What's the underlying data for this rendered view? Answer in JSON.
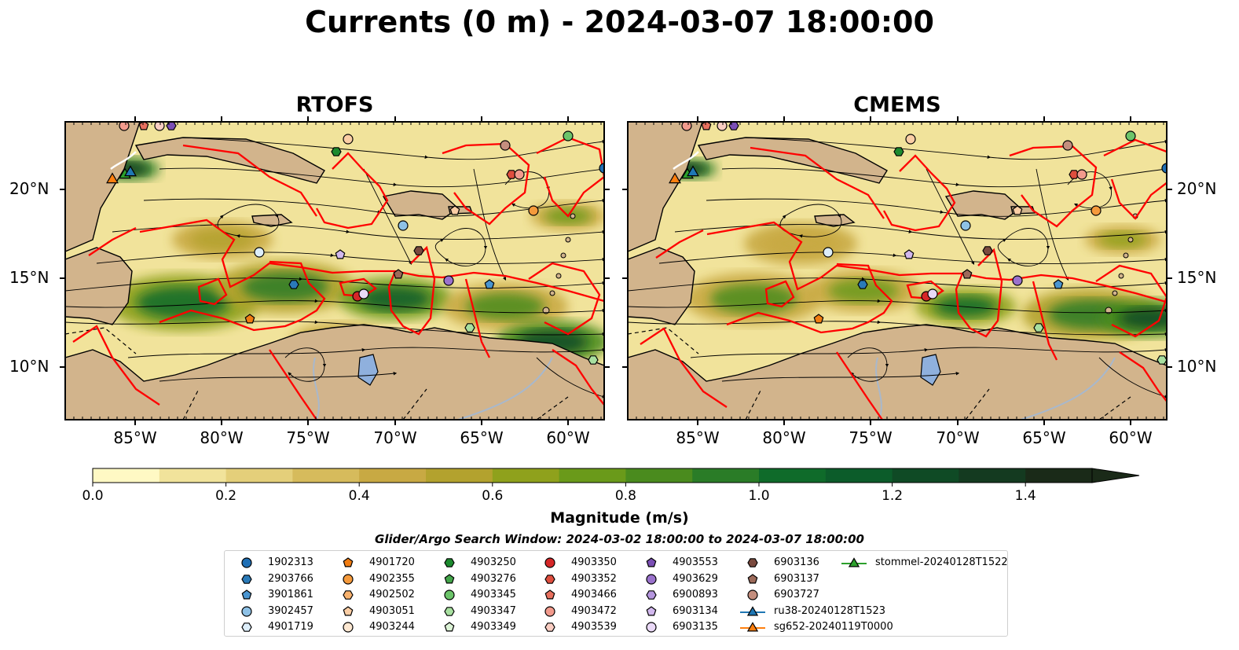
{
  "title": "Currents (0 m) - 2024-03-07 18:00:00",
  "panels": [
    {
      "name": "RTOFS"
    },
    {
      "name": "CMEMS"
    }
  ],
  "axes": {
    "lon_ticks": [
      "85°W",
      "80°W",
      "75°W",
      "70°W",
      "65°W",
      "60°W"
    ],
    "lat_ticks": [
      "20°N",
      "15°N",
      "10°N"
    ]
  },
  "colorbar": {
    "label": "Magnitude (m/s)",
    "range": [
      0,
      1.5
    ],
    "extend": "max",
    "ticks": [
      "0.0",
      "0.2",
      "0.4",
      "0.6",
      "0.8",
      "1.0",
      "1.2",
      "1.4"
    ],
    "colors": [
      "#fff9c4",
      "#f1e39b",
      "#e4cf7a",
      "#d6bb5c",
      "#c8a943",
      "#b3a22e",
      "#8fa11c",
      "#6a9a1a",
      "#4a8b1e",
      "#2a7c27",
      "#0f6b2a",
      "#0c5c2a",
      "#0f4a25",
      "#143a20",
      "#1a2a18"
    ]
  },
  "map_colors": {
    "land": "#d2b48c",
    "lake": "#8fb0dd",
    "river": "#a8b8cc",
    "search_boxes": "#ff0000",
    "streamlines": "#000000",
    "glider_track": "#ffffff"
  },
  "search_window": "Glider/Argo Search Window: 2024-03-02 18:00:00 to 2024-03-07 18:00:00",
  "legend": [
    {
      "label": "1902313",
      "marker": "circle",
      "color": "#1f6fb5"
    },
    {
      "label": "2903766",
      "marker": "hexagon",
      "color": "#2a7ab8"
    },
    {
      "label": "3901861",
      "marker": "pentagon",
      "color": "#4a95d0"
    },
    {
      "label": "3902457",
      "marker": "circle",
      "color": "#8ec1e6"
    },
    {
      "label": "4901719",
      "marker": "hexagon",
      "color": "#ddeefa"
    },
    {
      "label": "4901720",
      "marker": "pentagon",
      "color": "#f07c12"
    },
    {
      "label": "4902355",
      "marker": "circle",
      "color": "#f59a3c"
    },
    {
      "label": "4902502",
      "marker": "hexagon",
      "color": "#f8b26e"
    },
    {
      "label": "4903051",
      "marker": "pentagon",
      "color": "#fbcea5"
    },
    {
      "label": "4903244",
      "marker": "circle",
      "color": "#fde8d2"
    },
    {
      "label": "4903250",
      "marker": "hexagon",
      "color": "#1c8a2e"
    },
    {
      "label": "4903276",
      "marker": "pentagon",
      "color": "#43a54a"
    },
    {
      "label": "4903345",
      "marker": "circle",
      "color": "#6cc46a"
    },
    {
      "label": "4903347",
      "marker": "hexagon",
      "color": "#a8e0a0"
    },
    {
      "label": "4903349",
      "marker": "pentagon",
      "color": "#dcf3d6"
    },
    {
      "label": "4903350",
      "marker": "circle",
      "color": "#d62728"
    },
    {
      "label": "4903352",
      "marker": "hexagon",
      "color": "#df4e3e"
    },
    {
      "label": "4903466",
      "marker": "pentagon",
      "color": "#e8705e"
    },
    {
      "label": "4903472",
      "marker": "circle",
      "color": "#f29a8c"
    },
    {
      "label": "4903539",
      "marker": "hexagon",
      "color": "#f9cdc2"
    },
    {
      "label": "4903553",
      "marker": "pentagon",
      "color": "#7b4fb5"
    },
    {
      "label": "4903629",
      "marker": "circle",
      "color": "#9a72cc"
    },
    {
      "label": "6900893",
      "marker": "hexagon",
      "color": "#b596de"
    },
    {
      "label": "6903134",
      "marker": "pentagon",
      "color": "#d2b8ee"
    },
    {
      "label": "6903135",
      "marker": "circle",
      "color": "#ead9f7"
    },
    {
      "label": "6903136",
      "marker": "hexagon",
      "color": "#7a4a3e"
    },
    {
      "label": "6903137",
      "marker": "pentagon",
      "color": "#9c6a5a"
    },
    {
      "label": "6903727",
      "marker": "circle",
      "color": "#c48e7e"
    },
    {
      "label": "ru38-20240128T1523",
      "marker": "triangle-line",
      "color": "#1f77b4"
    },
    {
      "label": "sg652-20240119T0000",
      "marker": "triangle-line",
      "color": "#ff7f0e"
    },
    {
      "label": "stommel-20240128T1522",
      "marker": "triangle-line",
      "color": "#2ca02c"
    }
  ]
}
